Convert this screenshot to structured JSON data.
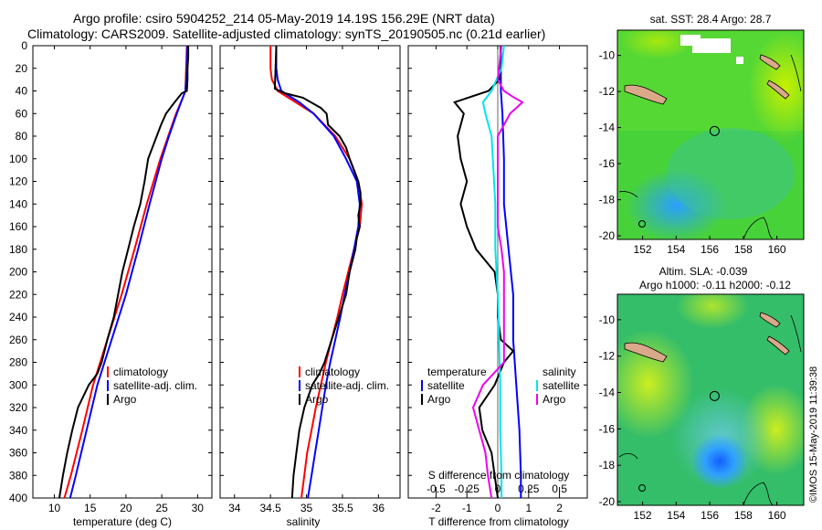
{
  "title": {
    "line1": "Argo profile: csiro 5904252_214 05-May-2019 14.19S 156.29E (NRT data)",
    "line2": "Climatology: CARS2009. Satellite-adjusted climatology: synTS_20190505.nc (0.21d earlier)"
  },
  "credit": "©IMOS 15-May-2019 11:39:38",
  "colors": {
    "climatology": "#ff0000",
    "satellite_adj": "#0000ff",
    "argo": "#000000",
    "satellite_cyan": "#00e5ee",
    "argo_magenta": "#ee00ee"
  },
  "chart_data": [
    {
      "type": "line",
      "id": "temperature",
      "xlabel": "temperature (deg C)",
      "ylabel": "",
      "xlim": [
        7,
        32
      ],
      "ylim": [
        400,
        0
      ],
      "xticks": [
        10,
        15,
        20,
        25,
        30
      ],
      "yticks": [
        0,
        20,
        40,
        60,
        80,
        100,
        120,
        140,
        160,
        180,
        200,
        220,
        240,
        260,
        280,
        300,
        320,
        340,
        360,
        380,
        400
      ],
      "legend": [
        "climatology",
        "satellite-adj. clim.",
        "Argo"
      ],
      "series": [
        {
          "name": "climatology",
          "color": "#ff0000",
          "depth": [
            0,
            20,
            40,
            45,
            60,
            80,
            100,
            140,
            180,
            220,
            260,
            300,
            340,
            380,
            400
          ],
          "values": [
            28.5,
            28.4,
            28.3,
            28.0,
            27.0,
            25.9,
            24.8,
            22.9,
            21.2,
            19.4,
            17.4,
            15.4,
            13.9,
            12.3,
            11.4
          ]
        },
        {
          "name": "satellite-adj. clim.",
          "color": "#0000ff",
          "depth": [
            0,
            20,
            40,
            45,
            60,
            80,
            100,
            140,
            180,
            220,
            260,
            300,
            340,
            380,
            400
          ],
          "values": [
            28.6,
            28.5,
            28.3,
            28.0,
            27.1,
            26.0,
            25.0,
            23.3,
            21.7,
            20.0,
            18.0,
            16.0,
            14.5,
            13.0,
            12.2
          ]
        },
        {
          "name": "Argo",
          "color": "#000000",
          "depth": [
            0,
            10,
            20,
            30,
            40,
            42,
            50,
            60,
            70,
            80,
            90,
            100,
            120,
            140,
            160,
            180,
            200,
            220,
            240,
            260,
            280,
            290,
            300,
            320,
            340,
            360,
            380,
            400
          ],
          "values": [
            28.7,
            28.7,
            28.6,
            28.6,
            28.5,
            27.8,
            26.8,
            25.6,
            24.9,
            24.3,
            23.7,
            23.1,
            22.6,
            22.0,
            21.1,
            20.3,
            19.5,
            18.9,
            18.3,
            17.4,
            16.6,
            16.0,
            14.8,
            13.3,
            12.5,
            11.8,
            11.2,
            10.7
          ]
        }
      ]
    },
    {
      "type": "line",
      "id": "salinity",
      "xlabel": "salinity",
      "xlim": [
        33.8,
        36.3
      ],
      "ylim": [
        400,
        0
      ],
      "xticks": [
        34,
        34.5,
        35,
        35.5,
        36
      ],
      "xticklabels": [
        "34",
        "34.5",
        "35",
        "35.5",
        "36"
      ],
      "legend": [
        "climatology",
        "satellite-adj. clim.",
        "Argo"
      ],
      "series": [
        {
          "name": "climatology",
          "color": "#ff0000",
          "depth": [
            0,
            20,
            30,
            40,
            50,
            60,
            80,
            100,
            120,
            140,
            160,
            180,
            200,
            220,
            240,
            260,
            280,
            300,
            320,
            340,
            360,
            380,
            400
          ],
          "values": [
            34.5,
            34.5,
            34.52,
            34.6,
            34.85,
            35.1,
            35.4,
            35.6,
            35.72,
            35.77,
            35.74,
            35.66,
            35.58,
            35.5,
            35.43,
            35.35,
            35.27,
            35.2,
            35.13,
            35.07,
            35.01,
            34.97,
            34.93
          ]
        },
        {
          "name": "satellite-adj. clim.",
          "color": "#0000ff",
          "depth": [
            0,
            20,
            30,
            40,
            50,
            60,
            80,
            100,
            120,
            140,
            160,
            180,
            200,
            220,
            240,
            260,
            280,
            300,
            320,
            340,
            360,
            380,
            400
          ],
          "values": [
            34.58,
            34.58,
            34.6,
            34.65,
            34.9,
            35.1,
            35.38,
            35.55,
            35.7,
            35.74,
            35.72,
            35.66,
            35.6,
            35.53,
            35.47,
            35.4,
            35.33,
            35.27,
            35.22,
            35.17,
            35.12,
            35.07,
            35.02
          ]
        },
        {
          "name": "Argo",
          "color": "#000000",
          "depth": [
            0,
            20,
            38,
            42,
            46,
            55,
            60,
            70,
            80,
            90,
            100,
            110,
            120,
            130,
            140,
            150,
            160,
            170,
            180,
            200,
            220,
            240,
            260,
            280,
            290,
            300,
            320,
            340,
            360,
            380,
            400
          ],
          "values": [
            34.58,
            34.57,
            34.56,
            34.7,
            34.95,
            35.2,
            35.28,
            35.3,
            35.46,
            35.55,
            35.6,
            35.66,
            35.72,
            35.75,
            35.75,
            35.72,
            35.74,
            35.7,
            35.68,
            35.6,
            35.55,
            35.45,
            35.35,
            35.25,
            35.18,
            35.08,
            34.97,
            34.9,
            34.86,
            34.82,
            34.8
          ]
        }
      ]
    },
    {
      "type": "line",
      "id": "difference",
      "xlabel": "T difference from climatology",
      "xlim": [
        -2.9,
        2.9
      ],
      "ylim": [
        400,
        0
      ],
      "xticks": [
        -2,
        -1,
        0,
        1,
        2
      ],
      "top_axis_label": "S difference from climatology",
      "top_ticks": [
        -0.5,
        -0.25,
        0,
        0.25,
        0.5
      ],
      "top_ticklabels": [
        "-0.5",
        "-0.25",
        "0",
        "0.25",
        "0.5"
      ],
      "legend_temperature": {
        "title": "temperature",
        "items": [
          "satellite",
          "Argo"
        ]
      },
      "legend_salinity": {
        "title": "salinity",
        "items": [
          "satellite",
          "Argo"
        ]
      },
      "series": [
        {
          "name": "temperature satellite",
          "color": "#0000ff",
          "depth": [
            0,
            40,
            60,
            100,
            140,
            180,
            220,
            260,
            300,
            340,
            380,
            400
          ],
          "values": [
            0.1,
            0.1,
            0.15,
            0.2,
            0.2,
            0.35,
            0.5,
            0.5,
            0.6,
            0.7,
            0.75,
            0.75
          ]
        },
        {
          "name": "temperature Argo",
          "color": "#000000",
          "depth": [
            0,
            30,
            40,
            50,
            60,
            80,
            100,
            120,
            140,
            160,
            180,
            200,
            220,
            240,
            260,
            270,
            280,
            300,
            320,
            340,
            360,
            380,
            400
          ],
          "values": [
            0.1,
            0.05,
            -0.3,
            -1.4,
            -1.1,
            -1.3,
            -1.2,
            -1.0,
            -1.2,
            -1.0,
            -0.7,
            -0.1,
            0.0,
            0.0,
            0.1,
            0.5,
            0.2,
            -0.1,
            -0.6,
            -0.5,
            -0.2,
            -0.1,
            0.0
          ]
        },
        {
          "name": "salinity satellite",
          "color": "#00e5ee",
          "depth": [
            0,
            20,
            40,
            50,
            60,
            80,
            100,
            140,
            180,
            220,
            260,
            300,
            340,
            380,
            400
          ],
          "values": [
            0.05,
            0.03,
            -0.05,
            -0.12,
            -0.1,
            -0.05,
            -0.04,
            -0.02,
            -0.02,
            0.0,
            0.01,
            0.02,
            0.02,
            0.03,
            0.03
          ]
        },
        {
          "name": "salinity Argo",
          "color": "#ee00ee",
          "depth": [
            0,
            30,
            40,
            45,
            50,
            55,
            60,
            80,
            100,
            120,
            140,
            160,
            180,
            200,
            240,
            280,
            300,
            320,
            340,
            360,
            380,
            400
          ],
          "values": [
            0.03,
            0.0,
            0.05,
            0.12,
            0.2,
            0.15,
            0.1,
            0.0,
            0.0,
            0.0,
            0.0,
            0.0,
            0.03,
            0.05,
            0.05,
            0.05,
            -0.12,
            -0.2,
            -0.15,
            -0.1,
            -0.08,
            -0.05
          ]
        }
      ]
    },
    {
      "type": "heatmap",
      "id": "sst_map",
      "title": "sat. SST: 28.4 Argo: 28.7",
      "xlim": [
        150.5,
        161.6
      ],
      "ylim": [
        -20.2,
        -8.6
      ],
      "xticks": [
        152,
        154,
        156,
        158,
        160
      ],
      "yticks": [
        -10,
        -12,
        -14,
        -16,
        -18,
        -20
      ],
      "marker": {
        "lon": 156.29,
        "lat": -14.19
      }
    },
    {
      "type": "heatmap",
      "id": "sla_map",
      "title": "Altim. SLA: -0.039",
      "subtitle": "Argo h1000: -0.11 h2000: -0.12",
      "xlim": [
        150.5,
        161.6
      ],
      "ylim": [
        -20.2,
        -8.6
      ],
      "xticks": [
        152,
        154,
        156,
        158,
        160
      ],
      "yticks": [
        -10,
        -12,
        -14,
        -16,
        -18,
        -20
      ],
      "marker": {
        "lon": 156.29,
        "lat": -14.19
      }
    }
  ]
}
